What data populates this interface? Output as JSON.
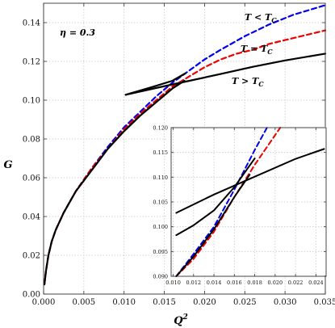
{
  "chart_data": [
    {
      "type": "line",
      "xlabel": "Q",
      "xlabel_sup": "2",
      "ylabel": "G",
      "xlim": [
        0,
        0.035
      ],
      "ylim": [
        0,
        0.15
      ],
      "xticks": [
        "0.000",
        "0.005",
        "0.010",
        "0.015",
        "0.020",
        "0.025",
        "0.030",
        "0.035"
      ],
      "xtick_values": [
        0,
        0.005,
        0.01,
        0.015,
        0.02,
        0.025,
        0.03,
        0.035
      ],
      "yticks": [
        "0.00",
        "0.02",
        "0.04",
        "0.06",
        "0.08",
        "0.10",
        "0.12",
        "0.14"
      ],
      "ytick_values": [
        0,
        0.02,
        0.04,
        0.06,
        0.08,
        0.1,
        0.12,
        0.14
      ],
      "grid": true,
      "annotations": {
        "eta": "η = 0.3",
        "t_less": "T < T",
        "t_equal": "T = T",
        "t_greater": "T > T",
        "sub": "C"
      },
      "series": [
        {
          "color": "#0000ee",
          "style": "dashed",
          "x": [
            0.0001,
            0.0003,
            0.0006,
            0.001,
            0.0015,
            0.0025,
            0.004,
            0.006,
            0.008,
            0.01,
            0.012,
            0.014,
            0.016,
            0.018,
            0.02,
            0.022,
            0.025,
            0.028,
            0.031,
            0.035
          ],
          "y": [
            0.005,
            0.012,
            0.02,
            0.027,
            0.033,
            0.042,
            0.053,
            0.065,
            0.076,
            0.086,
            0.094,
            0.102,
            0.109,
            0.115,
            0.121,
            0.126,
            0.133,
            0.139,
            0.144,
            0.149
          ]
        },
        {
          "color": "#ee0000",
          "style": "dashed",
          "x": [
            0.0001,
            0.0003,
            0.0006,
            0.001,
            0.0015,
            0.0025,
            0.004,
            0.006,
            0.008,
            0.01,
            0.012,
            0.014,
            0.016,
            0.018,
            0.02,
            0.022,
            0.024,
            0.026,
            0.028,
            0.03,
            0.033,
            0.035
          ],
          "y": [
            0.005,
            0.012,
            0.02,
            0.027,
            0.033,
            0.042,
            0.053,
            0.065,
            0.075,
            0.085,
            0.093,
            0.1,
            0.107,
            0.112,
            0.117,
            0.121,
            0.124,
            0.126,
            0.129,
            0.131,
            0.134,
            0.136
          ]
        },
        {
          "color": "#000000",
          "style": "solid",
          "x": [
            0.0001,
            0.0003,
            0.0006,
            0.001,
            0.0015,
            0.0025,
            0.004,
            0.006,
            0.008,
            0.01,
            0.012,
            0.014,
            0.016,
            0.0175
          ],
          "y": [
            0.005,
            0.012,
            0.02,
            0.027,
            0.033,
            0.042,
            0.053,
            0.064,
            0.075,
            0.084,
            0.092,
            0.099,
            0.106,
            0.11
          ]
        },
        {
          "color": "#000000",
          "style": "solid",
          "x": [
            0.0102,
            0.0135,
            0.016,
            0.0176
          ],
          "y": [
            0.1028,
            0.1068,
            0.11,
            0.1138
          ]
        },
        {
          "color": "#000000",
          "style": "solid",
          "x": [
            0.0102,
            0.014,
            0.018,
            0.022,
            0.026,
            0.03,
            0.035
          ],
          "y": [
            0.1028,
            0.1063,
            0.1099,
            0.1135,
            0.1172,
            0.1205,
            0.124
          ]
        }
      ]
    },
    {
      "type": "line",
      "inset": true,
      "xlim": [
        0.0098,
        0.025
      ],
      "ylim": [
        0.09,
        0.12
      ],
      "xticks": [
        "0.010",
        "0.012",
        "0.014",
        "0.016",
        "0.018",
        "0.020",
        "0.022",
        "0.024"
      ],
      "xtick_values": [
        0.01,
        0.012,
        0.014,
        0.016,
        0.018,
        0.02,
        0.022,
        0.024
      ],
      "yticks": [
        "0.090",
        "0.095",
        "0.100",
        "0.105",
        "0.110",
        "0.115",
        "0.120"
      ],
      "ytick_values": [
        0.09,
        0.095,
        0.1,
        0.105,
        0.11,
        0.115,
        0.12
      ],
      "grid": true,
      "series": [
        {
          "color": "#0000ee",
          "style": "dashed",
          "x": [
            0.0103,
            0.012,
            0.014,
            0.016,
            0.018,
            0.0192
          ],
          "y": [
            0.09,
            0.0945,
            0.1,
            0.1075,
            0.1155,
            0.12
          ]
        },
        {
          "color": "#ee0000",
          "style": "dashed",
          "x": [
            0.0103,
            0.012,
            0.014,
            0.016,
            0.018,
            0.0205
          ],
          "y": [
            0.09,
            0.0935,
            0.099,
            0.106,
            0.1125,
            0.12
          ]
        },
        {
          "color": "#000000",
          "style": "solid",
          "x": [
            0.0103,
            0.012,
            0.014,
            0.016,
            0.0175
          ],
          "y": [
            0.09,
            0.094,
            0.0995,
            0.106,
            0.1105
          ]
        },
        {
          "color": "#000000",
          "style": "solid",
          "x": [
            0.0103,
            0.012,
            0.014,
            0.016,
            0.018
          ],
          "y": [
            0.0983,
            0.1003,
            0.1033,
            0.108,
            0.1138
          ]
        },
        {
          "color": "#000000",
          "style": "solid",
          "x": [
            0.0103,
            0.014,
            0.018,
            0.022,
            0.0248
          ],
          "y": [
            0.1028,
            0.1065,
            0.1101,
            0.1137,
            0.1157
          ]
        }
      ]
    }
  ]
}
